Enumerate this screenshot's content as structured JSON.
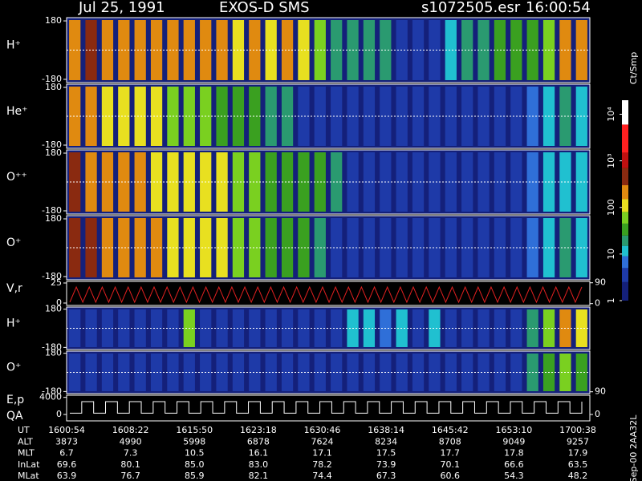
{
  "header": {
    "date": "Jul 25, 1991",
    "instrument": "EXOS-D SMS",
    "file": "s1072505.esr",
    "time": "16:00:54"
  },
  "colorbar": {
    "label": "Ct/Smp",
    "log": true,
    "ylim": [
      1,
      20000
    ],
    "yticks": [
      {
        "value": 10000,
        "label": "10⁴"
      },
      {
        "value": 1000,
        "label": "10³"
      },
      100,
      10,
      1
    ],
    "bounds": [
      1,
      2.5,
      5,
      9,
      15,
      25,
      45,
      80,
      150,
      300,
      700,
      1500,
      6000,
      20000
    ],
    "colors": [
      "#14207a",
      "#1e3aa8",
      "#2f6fd8",
      "#20c0d0",
      "#2a9a70",
      "#3aa020",
      "#7ad020",
      "#e8e020",
      "#e08a10",
      "#8a2a10",
      "#c01010",
      "#ff2020",
      "#ffffff"
    ]
  },
  "chart_data": [
    {
      "type": "heatmap",
      "label": "H⁺",
      "ylim": [
        -200,
        200
      ],
      "yticks": [
        180,
        -180
      ],
      "values": [
        150,
        300,
        200,
        250,
        180,
        220,
        160,
        200,
        150,
        180,
        140,
        160,
        120,
        150,
        130,
        60,
        20,
        18,
        22,
        20,
        4,
        4,
        3,
        12,
        15,
        18,
        40,
        30,
        25,
        60,
        200,
        150
      ]
    },
    {
      "type": "heatmap",
      "label": "He⁺",
      "ylim": [
        -200,
        200
      ],
      "yticks": [
        180,
        -180
      ],
      "values": [
        200,
        150,
        120,
        100,
        90,
        80,
        70,
        60,
        50,
        40,
        30,
        25,
        20,
        18,
        4,
        3,
        3,
        3,
        3,
        3,
        3,
        3,
        3,
        3,
        3,
        3,
        3,
        3,
        8,
        12,
        15,
        10
      ]
    },
    {
      "type": "heatmap",
      "label": "O⁺⁺",
      "ylim": [
        -200,
        200
      ],
      "yticks": [
        180,
        -180
      ],
      "values": [
        300,
        250,
        200,
        180,
        150,
        140,
        120,
        100,
        90,
        80,
        60,
        50,
        40,
        35,
        30,
        25,
        20,
        3,
        3,
        3,
        3,
        3,
        3,
        3,
        3,
        3,
        3,
        3,
        6,
        10,
        12,
        10
      ]
    },
    {
      "type": "heatmap",
      "label": "O⁺",
      "ylim": [
        -200,
        200
      ],
      "yticks": [
        180,
        -180
      ],
      "values": [
        400,
        300,
        250,
        200,
        180,
        150,
        120,
        100,
        90,
        80,
        70,
        60,
        40,
        30,
        25,
        20,
        3,
        3,
        3,
        3,
        3,
        3,
        3,
        3,
        3,
        3,
        3,
        3,
        6,
        12,
        15,
        10
      ]
    },
    {
      "type": "line",
      "label": "V,r",
      "ylim": [
        -3,
        27
      ],
      "yticks": [
        25,
        0
      ],
      "y2lim": [
        -8,
        96
      ],
      "y2ticks": [
        90,
        0
      ],
      "color": "#e02020",
      "values": [
        1,
        20,
        1,
        20,
        1,
        20,
        1,
        20,
        1,
        20,
        1,
        20,
        1,
        20,
        1,
        20,
        1,
        20,
        1,
        20,
        1,
        20,
        1,
        20,
        1,
        20,
        1,
        20,
        1,
        20,
        1,
        20,
        1,
        20,
        1,
        20,
        1,
        20,
        1,
        20,
        1,
        20,
        1,
        20,
        1,
        20,
        1,
        20,
        1,
        20,
        1,
        20,
        1,
        20,
        1,
        20,
        1,
        20,
        1,
        20,
        1,
        20,
        1,
        20,
        1,
        20,
        1,
        20,
        1,
        20,
        1,
        20,
        1,
        20,
        1,
        20,
        1,
        20,
        1,
        20
      ]
    },
    {
      "type": "heatmap",
      "label": "H⁺",
      "ylim": [
        -200,
        200
      ],
      "yticks": [
        180,
        -180
      ],
      "values": [
        3,
        3,
        3,
        3,
        3,
        3,
        3,
        60,
        4,
        3,
        3,
        3,
        3,
        3,
        3,
        3,
        3,
        10,
        12,
        8,
        10,
        3,
        10,
        3,
        3,
        3,
        3,
        3,
        20,
        60,
        150,
        80
      ]
    },
    {
      "type": "heatmap",
      "label": "O⁺",
      "ylim": [
        -200,
        200
      ],
      "yticks": [
        180,
        -180
      ],
      "y2lim": [
        85,
        200
      ],
      "y2ticks": [
        90
      ],
      "values": [
        3,
        3,
        3,
        3,
        3,
        3,
        3,
        3,
        3,
        3,
        3,
        3,
        3,
        3,
        3,
        3,
        3,
        3,
        3,
        3,
        3,
        3,
        3,
        3,
        3,
        3,
        3,
        3,
        15,
        40,
        60,
        30
      ]
    },
    {
      "type": "step",
      "label": "E,p",
      "sublabel": "QA",
      "ylim": [
        -1500,
        4500
      ],
      "yticks": [
        4000,
        0
      ],
      "y2lim": [
        -1500,
        4500
      ],
      "y2ticks": [
        0
      ],
      "color": "#ffffff",
      "values": [
        300,
        3000,
        300,
        3000,
        300,
        3000,
        300,
        3000,
        300,
        3000,
        300,
        3000,
        300,
        3000,
        300,
        3000,
        300,
        3000,
        300,
        3000,
        300,
        3000,
        300,
        3000,
        300,
        3000,
        300,
        3000,
        300,
        3000,
        300,
        3000,
        300,
        3000,
        300,
        3000,
        300,
        3000,
        300,
        3000,
        300,
        3000,
        300,
        3000
      ]
    }
  ],
  "ephemeris": {
    "rows": [
      {
        "label": "UT",
        "values": [
          "1600:54",
          "1608:22",
          "1615:50",
          "1623:18",
          "1630:46",
          "1638:14",
          "1645:42",
          "1653:10",
          "1700:38"
        ]
      },
      {
        "label": "ALT",
        "values": [
          "3873",
          "4990",
          "5998",
          "6878",
          "7624",
          "8234",
          "8708",
          "9049",
          "9257"
        ]
      },
      {
        "label": "MLT",
        "values": [
          "6.7",
          "7.3",
          "10.5",
          "16.1",
          "17.1",
          "17.5",
          "17.7",
          "17.8",
          "17.9"
        ]
      },
      {
        "label": "InLat",
        "values": [
          "69.6",
          "80.1",
          "85.0",
          "83.0",
          "78.2",
          "73.9",
          "70.1",
          "66.6",
          "63.5"
        ]
      },
      {
        "label": "MLat",
        "values": [
          "63.9",
          "76.7",
          "85.9",
          "82.1",
          "74.4",
          "67.3",
          "60.6",
          "54.3",
          "48.2"
        ]
      }
    ]
  },
  "footer": "Sep-00 2AA32L"
}
